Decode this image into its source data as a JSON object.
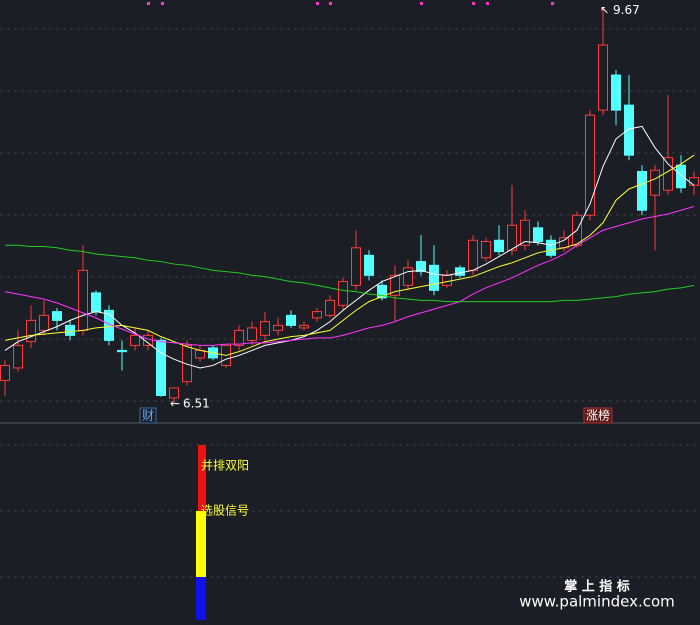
{
  "chart_data": {
    "type": "candlestick",
    "ylim": [
      6.35,
      9.73
    ],
    "up_color": "#ff3b3b",
    "down_color": "#54ffff",
    "open": [
      6.69,
      6.79,
      7.0,
      7.09,
      7.24,
      7.13,
      7.09,
      7.39,
      7.25,
      6.93,
      6.97,
      6.97,
      7.01,
      6.55,
      6.68,
      6.87,
      6.95,
      6.81,
      6.97,
      7.01,
      7.05,
      7.09,
      7.21,
      7.11,
      7.19,
      7.21,
      7.29,
      7.45,
      7.69,
      7.45,
      7.37,
      7.45,
      7.64,
      7.61,
      7.45,
      7.59,
      7.57,
      7.67,
      7.81,
      7.73,
      7.77,
      7.91,
      7.81,
      7.75,
      7.77,
      8.01,
      8.85,
      9.13,
      8.89,
      8.36,
      8.17,
      8.21,
      8.41,
      8.25
    ],
    "high": [
      6.85,
      7.09,
      7.29,
      7.33,
      7.27,
      7.17,
      7.77,
      7.41,
      7.29,
      7.01,
      7.11,
      7.09,
      7.03,
      6.63,
      7.01,
      6.97,
      6.97,
      6.97,
      7.13,
      7.16,
      7.24,
      7.19,
      7.25,
      7.16,
      7.27,
      7.37,
      7.51,
      7.89,
      7.73,
      7.49,
      7.61,
      7.65,
      7.85,
      7.77,
      7.57,
      7.61,
      7.85,
      7.83,
      7.93,
      8.25,
      8.05,
      7.96,
      7.85,
      7.89,
      8.04,
      8.85,
      9.67,
      9.17,
      9.13,
      8.41,
      8.41,
      8.97,
      8.49,
      8.36
    ],
    "low": [
      6.57,
      6.76,
      6.95,
      7.05,
      7.09,
      7.01,
      7.05,
      7.21,
      6.97,
      6.77,
      6.93,
      6.93,
      6.56,
      6.51,
      6.65,
      6.84,
      6.85,
      6.79,
      6.93,
      6.97,
      7.01,
      7.05,
      7.11,
      7.09,
      7.16,
      7.19,
      7.25,
      7.41,
      7.49,
      7.33,
      7.16,
      7.41,
      7.53,
      7.37,
      7.43,
      7.51,
      7.53,
      7.64,
      7.69,
      7.69,
      7.73,
      7.77,
      7.67,
      7.72,
      7.75,
      7.97,
      8.81,
      8.73,
      8.45,
      8.01,
      7.73,
      8.17,
      8.19,
      8.17
    ],
    "close": [
      6.81,
      6.97,
      7.17,
      7.21,
      7.17,
      7.05,
      7.57,
      7.24,
      7.01,
      6.92,
      7.05,
      7.05,
      6.57,
      6.63,
      6.97,
      6.93,
      6.87,
      6.97,
      7.09,
      7.11,
      7.16,
      7.13,
      7.13,
      7.13,
      7.24,
      7.33,
      7.48,
      7.75,
      7.53,
      7.35,
      7.53,
      7.59,
      7.56,
      7.41,
      7.53,
      7.53,
      7.81,
      7.8,
      7.72,
      7.93,
      7.97,
      7.8,
      7.69,
      7.83,
      8.01,
      8.81,
      9.37,
      8.85,
      8.49,
      8.05,
      8.37,
      8.47,
      8.23,
      8.31
    ],
    "series": [
      {
        "color": "#ffffff",
        "values": [
          6.93,
          7.0,
          7.04,
          7.08,
          7.12,
          7.17,
          7.21,
          7.24,
          7.22,
          7.13,
          7.07,
          6.99,
          6.91,
          6.86,
          6.82,
          6.79,
          6.81,
          6.86,
          6.89,
          6.93,
          6.97,
          6.99,
          7.01,
          7.04,
          7.09,
          7.16,
          7.25,
          7.33,
          7.41,
          7.48,
          7.52,
          7.56,
          7.57,
          7.54,
          7.53,
          7.55,
          7.57,
          7.62,
          7.68,
          7.74,
          7.8,
          7.79,
          7.77,
          7.81,
          7.89,
          8.1,
          8.4,
          8.62,
          8.7,
          8.72,
          8.55,
          8.42,
          8.33,
          8.25
        ]
      },
      {
        "color": "#ffff33",
        "values": [
          7.01,
          7.03,
          7.05,
          7.06,
          7.07,
          7.08,
          7.09,
          7.11,
          7.12,
          7.13,
          7.11,
          7.09,
          7.04,
          7.0,
          6.96,
          6.93,
          6.91,
          6.89,
          6.92,
          6.96,
          7.0,
          7.02,
          7.04,
          7.05,
          7.07,
          7.09,
          7.17,
          7.25,
          7.32,
          7.36,
          7.4,
          7.42,
          7.44,
          7.46,
          7.48,
          7.5,
          7.52,
          7.56,
          7.6,
          7.63,
          7.67,
          7.71,
          7.73,
          7.75,
          7.78,
          7.85,
          7.95,
          8.13,
          8.22,
          8.26,
          8.3,
          8.36,
          8.42,
          8.49
        ]
      },
      {
        "color": "#ff33ff",
        "values": [
          7.4,
          7.38,
          7.36,
          7.34,
          7.31,
          7.27,
          7.23,
          7.19,
          7.14,
          7.1,
          7.06,
          7.02,
          7.0,
          6.99,
          6.98,
          6.97,
          6.97,
          6.98,
          6.98,
          6.99,
          6.99,
          7.0,
          7.01,
          7.02,
          7.03,
          7.03,
          7.05,
          7.08,
          7.11,
          7.13,
          7.16,
          7.2,
          7.23,
          7.26,
          7.29,
          7.32,
          7.38,
          7.43,
          7.47,
          7.51,
          7.56,
          7.61,
          7.65,
          7.7,
          7.77,
          7.83,
          7.89,
          7.92,
          7.95,
          7.98,
          8.0,
          8.02,
          8.05,
          8.08
        ]
      },
      {
        "color": "#22cc22",
        "values": [
          7.77,
          7.77,
          7.76,
          7.76,
          7.75,
          7.73,
          7.72,
          7.7,
          7.69,
          7.68,
          7.67,
          7.65,
          7.64,
          7.62,
          7.61,
          7.59,
          7.57,
          7.56,
          7.55,
          7.53,
          7.52,
          7.5,
          7.48,
          7.47,
          7.45,
          7.43,
          7.41,
          7.4,
          7.38,
          7.37,
          7.35,
          7.34,
          7.33,
          7.33,
          7.32,
          7.32,
          7.32,
          7.32,
          7.32,
          7.32,
          7.32,
          7.32,
          7.32,
          7.33,
          7.33,
          7.34,
          7.35,
          7.36,
          7.38,
          7.39,
          7.4,
          7.42,
          7.43,
          7.45
        ]
      }
    ],
    "tags": [
      "财",
      "涨榜"
    ]
  },
  "indicator": {
    "labels": [
      "并排双阳",
      "选股信号"
    ]
  },
  "watermark": {
    "title": "掌 上 指 标",
    "url": "www.palmindex.com"
  }
}
